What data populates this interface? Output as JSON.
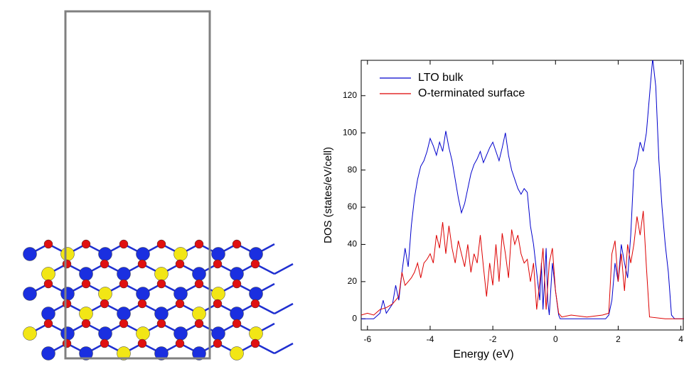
{
  "chart_data": {
    "type": "line",
    "x_label": "Energy (eV)",
    "y_label": "DOS (states/eV/cell)",
    "xlim": [
      -6.2,
      4.1
    ],
    "ylim": [
      -6,
      139
    ],
    "xticks": [
      -6,
      -4,
      -2,
      0,
      2,
      4
    ],
    "yticks": [
      0,
      20,
      40,
      60,
      80,
      100,
      120
    ],
    "legend": "upper left",
    "series": [
      {
        "name": "LTO bulk",
        "color": "#0000cc",
        "x": [
          -6.2,
          -5.8,
          -5.6,
          -5.5,
          -5.4,
          -5.2,
          -5.1,
          -5.0,
          -4.9,
          -4.8,
          -4.7,
          -4.6,
          -4.5,
          -4.4,
          -4.3,
          -4.2,
          -4.1,
          -4.0,
          -3.9,
          -3.8,
          -3.7,
          -3.6,
          -3.5,
          -3.4,
          -3.3,
          -3.2,
          -3.1,
          -3.0,
          -2.9,
          -2.8,
          -2.7,
          -2.6,
          -2.5,
          -2.4,
          -2.3,
          -2.2,
          -2.1,
          -2.0,
          -1.9,
          -1.8,
          -1.7,
          -1.6,
          -1.5,
          -1.4,
          -1.3,
          -1.2,
          -1.1,
          -1.0,
          -0.9,
          -0.8,
          -0.7,
          -0.6,
          -0.5,
          -0.45,
          -0.4,
          -0.3,
          -0.25,
          -0.2,
          -0.1,
          0.0,
          0.1,
          0.15,
          1.6,
          1.7,
          1.8,
          1.9,
          2.0,
          2.1,
          2.2,
          2.3,
          2.4,
          2.5,
          2.6,
          2.7,
          2.8,
          2.9,
          3.0,
          3.1,
          3.2,
          3.3,
          3.4,
          3.5,
          3.6,
          3.7,
          3.8,
          4.1
        ],
        "values": [
          0,
          0,
          3,
          10,
          3,
          8,
          18,
          10,
          25,
          38,
          28,
          50,
          65,
          75,
          82,
          85,
          90,
          97,
          93,
          88,
          95,
          90,
          101,
          92,
          85,
          75,
          65,
          57,
          62,
          70,
          78,
          83,
          86,
          90,
          84,
          88,
          92,
          95,
          90,
          85,
          92,
          100,
          88,
          80,
          75,
          70,
          67,
          70,
          68,
          50,
          40,
          25,
          10,
          30,
          5,
          38,
          10,
          2,
          30,
          15,
          2,
          0,
          0,
          2,
          10,
          30,
          20,
          40,
          30,
          22,
          45,
          80,
          85,
          95,
          90,
          100,
          120,
          140,
          125,
          85,
          60,
          40,
          25,
          2,
          0,
          0
        ]
      },
      {
        "name": "O-terminated surface",
        "color": "#dd0000",
        "x": [
          -6.2,
          -6.0,
          -5.8,
          -5.6,
          -5.4,
          -5.2,
          -5.0,
          -4.9,
          -4.8,
          -4.7,
          -4.6,
          -4.5,
          -4.4,
          -4.3,
          -4.2,
          -4.1,
          -4.0,
          -3.9,
          -3.8,
          -3.7,
          -3.6,
          -3.5,
          -3.4,
          -3.3,
          -3.2,
          -3.1,
          -3.0,
          -2.9,
          -2.8,
          -2.7,
          -2.6,
          -2.5,
          -2.4,
          -2.3,
          -2.2,
          -2.1,
          -2.0,
          -1.9,
          -1.8,
          -1.7,
          -1.6,
          -1.5,
          -1.4,
          -1.3,
          -1.2,
          -1.1,
          -1.0,
          -0.9,
          -0.8,
          -0.7,
          -0.6,
          -0.5,
          -0.4,
          -0.3,
          -0.2,
          -0.1,
          0.0,
          0.1,
          0.2,
          0.5,
          1.0,
          1.5,
          1.7,
          1.8,
          1.9,
          2.0,
          2.1,
          2.2,
          2.3,
          2.4,
          2.5,
          2.6,
          2.7,
          2.8,
          2.9,
          3.0,
          3.5,
          4.1
        ],
        "values": [
          2,
          3,
          2,
          5,
          6,
          8,
          12,
          25,
          18,
          20,
          22,
          25,
          30,
          22,
          30,
          32,
          35,
          30,
          45,
          38,
          52,
          35,
          50,
          38,
          30,
          42,
          35,
          28,
          40,
          25,
          35,
          30,
          45,
          28,
          12,
          30,
          18,
          40,
          20,
          46,
          35,
          22,
          48,
          40,
          45,
          35,
          30,
          32,
          20,
          30,
          5,
          20,
          38,
          5,
          30,
          38,
          15,
          3,
          1,
          2,
          1,
          2,
          3,
          35,
          42,
          20,
          35,
          15,
          40,
          30,
          40,
          55,
          45,
          58,
          28,
          1,
          0,
          0
        ]
      }
    ]
  }
}
